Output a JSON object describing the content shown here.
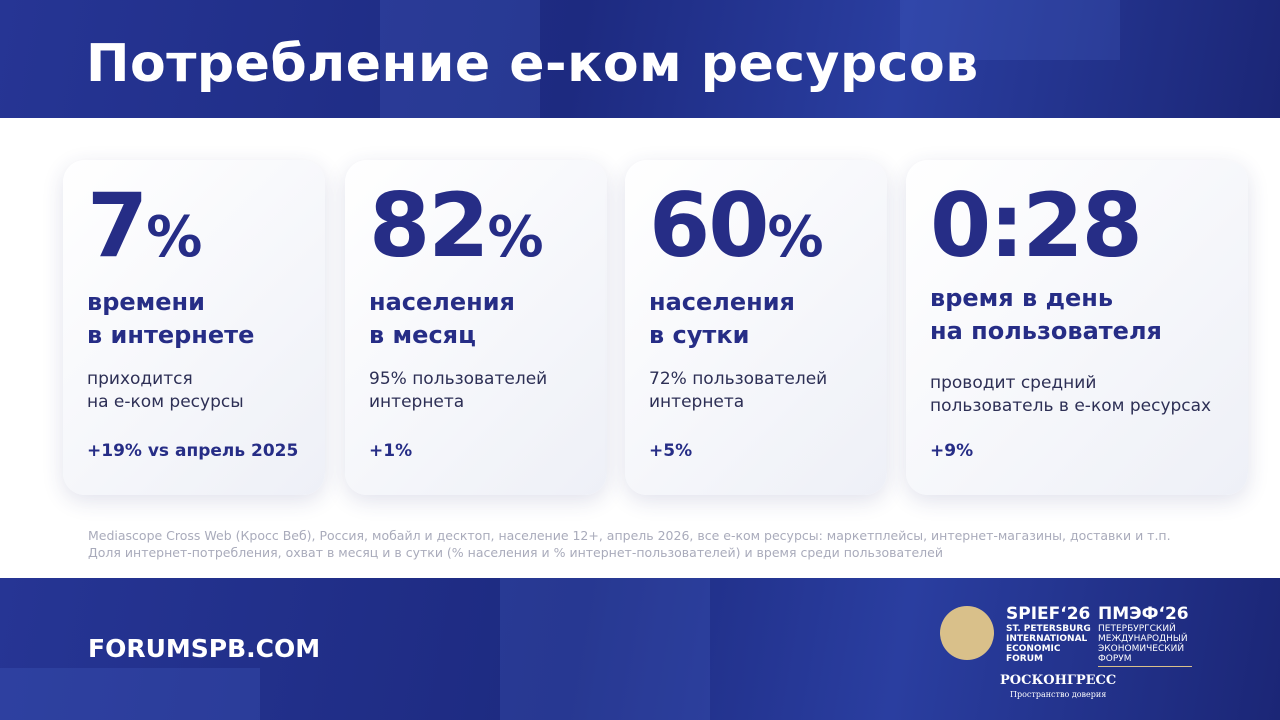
{
  "header": {
    "title": "Потребление е-ком ресурсов"
  },
  "cards": [
    {
      "value": "7",
      "unit": "%",
      "title": [
        "времени",
        "в интернете"
      ],
      "description": [
        "приходится",
        "на е-ком ресурсы"
      ],
      "change": "+19% vs апрель 2025"
    },
    {
      "value": "82",
      "unit": "%",
      "title": [
        "населения",
        "в месяц"
      ],
      "description": [
        "95% пользователей",
        "интернета"
      ],
      "change": "+1%"
    },
    {
      "value": "60",
      "unit": "%",
      "title": [
        "населения",
        "в сутки"
      ],
      "description": [
        "72% пользователей",
        "интернета"
      ],
      "change": "+5%"
    },
    {
      "value": "0:28",
      "title": [
        "время в день",
        "на пользователя"
      ],
      "description": [
        "проводит средний",
        "пользователь в е-ком ресурсах"
      ],
      "change": "+9%"
    }
  ],
  "footnote": [
    "Mediascope Cross Web (Кросс Веб), Россия, мобайл и десктоп, население 12+, апрель 2026, все е-ком ресурсы: маркетплейсы, интернет-магазины, доставки и т.п.",
    "Доля интернет-потребления, охват в месяц и в сутки (% населения и % интернет-пользователей) и время среди пользователей"
  ],
  "footer": {
    "site": "FORUMSPB.COM",
    "logo": {
      "en_name": "SPIEF‘26",
      "en_lines": [
        "ST. PETERSBURG",
        "INTERNATIONAL",
        "ECONOMIC",
        "FORUM"
      ],
      "ru_name": "ПМЭФ‘26",
      "ru_lines": [
        "ПЕТЕРБУРГСКИЙ",
        "МЕЖДУНАРОДНЫЙ",
        "ЭКОНОМИЧЕСКИЙ",
        "ФОРУМ"
      ],
      "organizer": "РОСКОНГРЕСС",
      "tagline": "Пространство доверия"
    }
  }
}
